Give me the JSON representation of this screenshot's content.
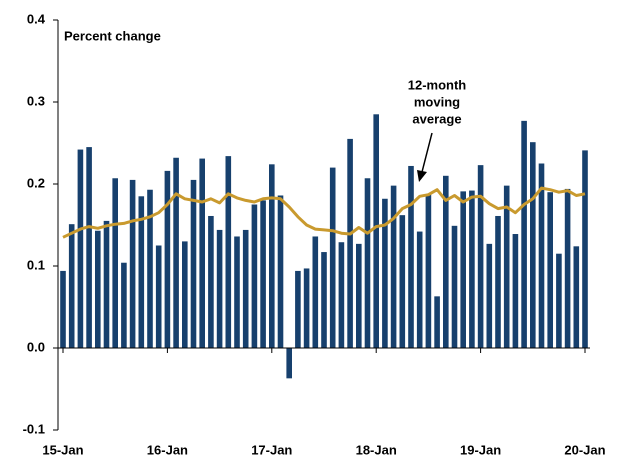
{
  "chart_data": {
    "type": "bar",
    "title": "Percent change",
    "categories": [
      "15-Jan",
      null,
      null,
      null,
      null,
      null,
      null,
      null,
      null,
      null,
      null,
      null,
      "16-Jan",
      null,
      null,
      null,
      null,
      null,
      null,
      null,
      null,
      null,
      null,
      null,
      "17-Jan",
      null,
      null,
      null,
      null,
      null,
      null,
      null,
      null,
      null,
      null,
      null,
      "18-Jan",
      null,
      null,
      null,
      null,
      null,
      null,
      null,
      null,
      null,
      null,
      null,
      "19-Jan",
      null,
      null,
      null,
      null,
      null,
      null,
      null,
      null,
      null,
      null,
      null,
      "20-Jan"
    ],
    "values": [
      0.094,
      0.151,
      0.242,
      0.245,
      0.143,
      0.155,
      0.207,
      0.104,
      0.205,
      0.185,
      0.193,
      0.125,
      0.216,
      0.232,
      0.13,
      0.205,
      0.231,
      0.161,
      0.144,
      0.234,
      0.136,
      0.144,
      0.175,
      0.18,
      0.224,
      0.186,
      -0.037,
      0.094,
      0.097,
      0.136,
      0.117,
      0.22,
      0.129,
      0.255,
      0.127,
      0.207,
      0.285,
      0.182,
      0.198,
      0.162,
      0.222,
      0.142,
      0.187,
      0.063,
      0.21,
      0.149,
      0.191,
      0.192,
      0.223,
      0.127,
      0.161,
      0.198,
      0.139,
      0.277,
      0.251,
      0.225,
      0.19,
      0.115,
      0.194,
      0.124,
      0.241
    ],
    "color": "#17406d",
    "moving_average": {
      "color": "#c99a2e",
      "values": [
        0.135,
        0.14,
        0.145,
        0.148,
        0.146,
        0.149,
        0.151,
        0.152,
        0.155,
        0.157,
        0.16,
        0.165,
        0.175,
        0.188,
        0.182,
        0.18,
        0.178,
        0.182,
        0.177,
        0.188,
        0.183,
        0.18,
        0.178,
        0.182,
        0.183,
        0.182,
        0.172,
        0.16,
        0.15,
        0.145,
        0.144,
        0.143,
        0.14,
        0.139,
        0.147,
        0.14,
        0.148,
        0.15,
        0.158,
        0.17,
        0.175,
        0.185,
        0.187,
        0.193,
        0.18,
        0.186,
        0.178,
        0.184,
        0.185,
        0.176,
        0.17,
        0.172,
        0.165,
        0.175,
        0.182,
        0.195,
        0.193,
        0.19,
        0.192,
        0.186,
        0.188
      ]
    },
    "annotation": [
      "12-month",
      "moving",
      "average"
    ],
    "ylim": [
      -0.1,
      0.4
    ],
    "yticks": [
      -0.1,
      {
        "value": 0,
        "label": "0.0"
      },
      0.1,
      0.2,
      0.3,
      0.4
    ]
  }
}
